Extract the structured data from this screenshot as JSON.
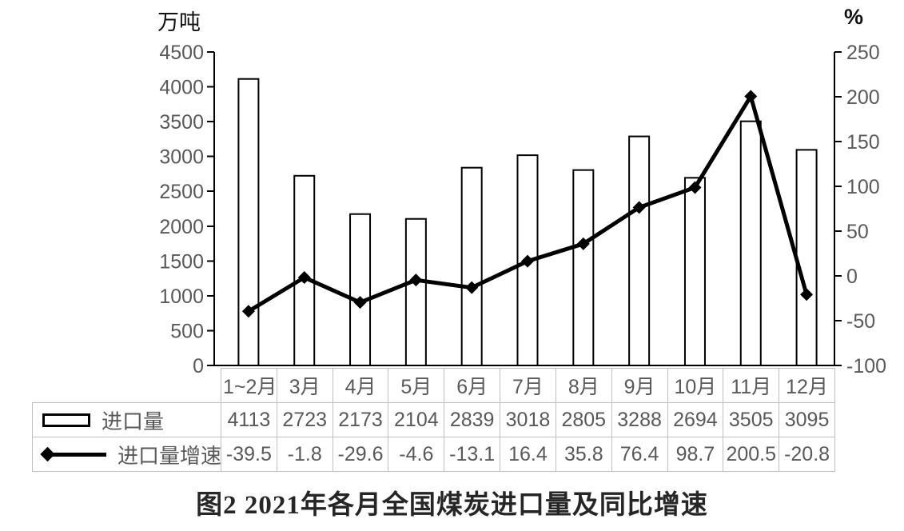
{
  "chart_data": {
    "type": "combo-bar-line",
    "title": "图2 2021年各月全国煤炭进口量及同比增速",
    "categories": [
      "1~2月",
      "3月",
      "4月",
      "5月",
      "6月",
      "7月",
      "8月",
      "9月",
      "10月",
      "11月",
      "12月"
    ],
    "series": [
      {
        "name": "进口量",
        "type": "bar",
        "axis": "left",
        "values": [
          4113,
          2723,
          2173,
          2104,
          2839,
          3018,
          2805,
          3288,
          2694,
          3505,
          3095
        ]
      },
      {
        "name": "进口量增速",
        "type": "line",
        "axis": "right",
        "values": [
          -39.5,
          -1.8,
          -29.6,
          -4.6,
          -13.1,
          16.4,
          35.8,
          76.4,
          98.7,
          200.5,
          -20.8
        ]
      }
    ],
    "left_axis": {
      "unit": "万吨",
      "min": 0,
      "max": 4500,
      "step": 500
    },
    "right_axis": {
      "unit": "%",
      "min": -100,
      "max": 250,
      "step": 50
    },
    "grid": false,
    "legend_position": "table-left",
    "colors": {
      "bar_fill": "#ffffff",
      "stroke": "#000000",
      "tick_label": "#595959",
      "table_border": "#bfbfbf",
      "table_text": "#595959",
      "title_text": "#262626"
    }
  }
}
